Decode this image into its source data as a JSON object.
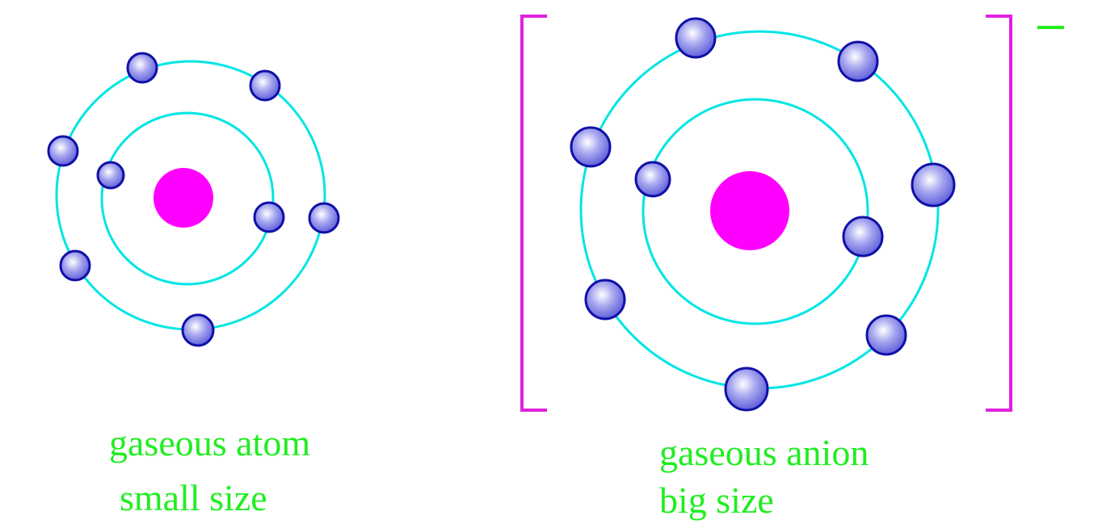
{
  "colors": {
    "background": "#ffffff",
    "orbit": "#00e5e5",
    "nucleus": "#ff00ff",
    "electron_fill_light": "#ffffff",
    "electron_fill_mid": "#a8a8f0",
    "electron_fill_dark": "#5a5ad8",
    "electron_stroke": "#1010a8",
    "bracket": "#e020e0",
    "caption": "#20ee20"
  },
  "atom": {
    "caption_line1": "gaseous atom",
    "caption_line2": "small size",
    "inner_electrons": 2,
    "outer_electrons": 6
  },
  "anion": {
    "caption_line1": "gaseous anion",
    "caption_line2": "big size",
    "inner_electrons": 2,
    "outer_electrons": 7,
    "charge_sign": "−"
  }
}
